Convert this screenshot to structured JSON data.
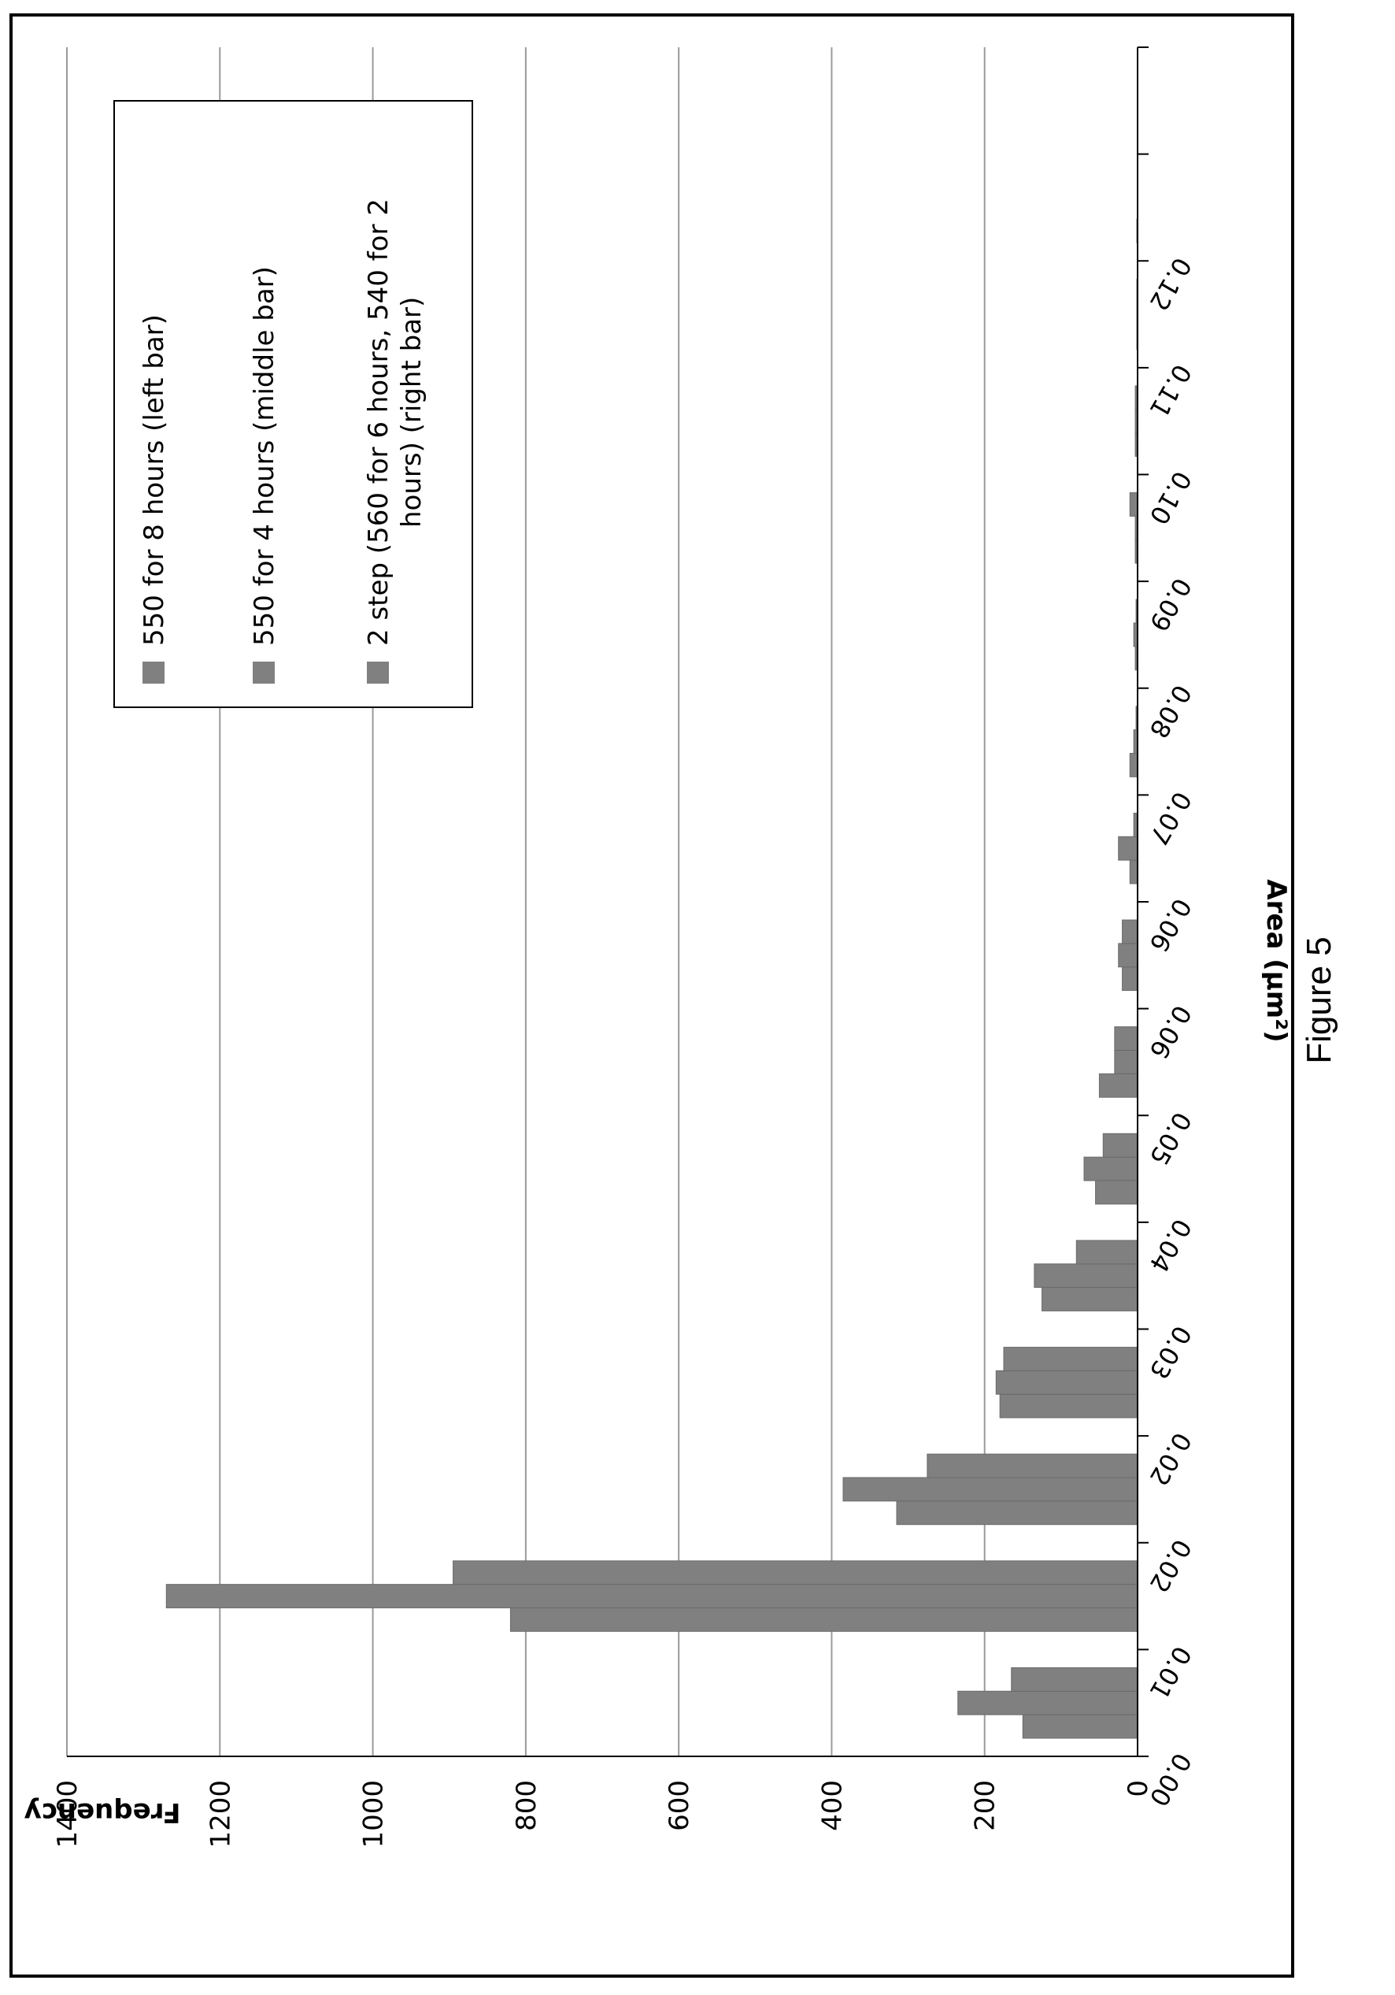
{
  "figure_caption": "Figure 5",
  "chart_data": {
    "type": "bar",
    "orientation": "rotated 90° (x axis runs vertically, values extend upward-left)",
    "xlabel": "Area (µm²)",
    "ylabel": "Frequency",
    "ylim": [
      0,
      1400
    ],
    "y_ticks": [
      "0",
      "200",
      "400",
      "600",
      "800",
      "1000",
      "1200",
      "1400"
    ],
    "x_tick_labels": [
      "0.00",
      "0.01",
      "0.02",
      "0.02",
      "0.03",
      "0.04",
      "0.05",
      "0.06",
      "0.06",
      "0.07",
      "0.08",
      "0.09",
      "0.10",
      "0.11",
      "0.12"
    ],
    "grid": true,
    "legend_position": "top-right",
    "bar_color": "#808080",
    "series": [
      {
        "name": "550 for 8 hours  (left bar)",
        "values": [
          150,
          820,
          315,
          180,
          125,
          55,
          50,
          20,
          10,
          10,
          3,
          3,
          3,
          1,
          1,
          0
        ]
      },
      {
        "name": "550 for 4 hours (middle bar)",
        "values": [
          235,
          1270,
          385,
          185,
          135,
          70,
          30,
          25,
          25,
          5,
          5,
          3,
          3,
          1,
          0,
          0
        ]
      },
      {
        "name": "2 step (560 for 6 hours, 540 for 2 hours) (right bar)",
        "values": [
          165,
          895,
          275,
          175,
          80,
          45,
          30,
          20,
          5,
          2,
          2,
          10,
          3,
          1,
          0,
          0
        ]
      }
    ]
  }
}
